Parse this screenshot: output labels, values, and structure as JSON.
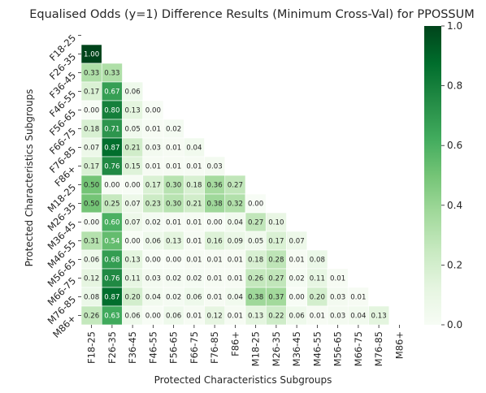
{
  "chart_data": {
    "type": "heatmap",
    "title": "Equalised Odds (y=1)  Difference Results (Minimum Cross-Val) for PPOSSUM",
    "xlabel": "Protected Characteristics Subgroups",
    "ylabel": "Protected Characteristics Subgroups",
    "x_categories": [
      "F18-25",
      "F26-35",
      "F36-45",
      "F46-55",
      "F56-65",
      "F66-75",
      "F76-85",
      "F86+",
      "M18-25",
      "M26-35",
      "M36-45",
      "M46-55",
      "M56-65",
      "M66-75",
      "M76-85",
      "M86+"
    ],
    "y_categories": [
      "F18-25",
      "F26-35",
      "F36-45",
      "F46-55",
      "F56-65",
      "F66-75",
      "F76-85",
      "F86+",
      "M18-25",
      "M26-35",
      "M36-45",
      "M46-55",
      "M56-65",
      "M66-75",
      "M76-85",
      "M86+"
    ],
    "mask": "upper-triangle-including-diagonal",
    "values": [
      [],
      [
        "1.00"
      ],
      [
        "0.33",
        "0.33"
      ],
      [
        "0.17",
        "0.67",
        "0.06"
      ],
      [
        "0.00",
        "0.80",
        "0.13",
        "0.00"
      ],
      [
        "0.18",
        "0.71",
        "0.05",
        "0.01",
        "0.02"
      ],
      [
        "0.07",
        "0.87",
        "0.21",
        "0.03",
        "0.01",
        "0.04"
      ],
      [
        "0.17",
        "0.76",
        "0.15",
        "0.01",
        "0.01",
        "0.01",
        "0.03"
      ],
      [
        "0.50",
        "0.00",
        "0.00",
        "0.17",
        "0.30",
        "0.18",
        "0.36",
        "0.27"
      ],
      [
        "0.50",
        "0.25",
        "0.07",
        "0.23",
        "0.30",
        "0.21",
        "0.38",
        "0.32",
        "0.00"
      ],
      [
        "0.00",
        "0.60",
        "0.07",
        "0.02",
        "0.01",
        "0.01",
        "0.00",
        "0.04",
        "0.27",
        "0.10"
      ],
      [
        "0.31",
        "0.54",
        "0.00",
        "0.06",
        "0.13",
        "0.01",
        "0.16",
        "0.09",
        "0.05",
        "0.17",
        "0.07"
      ],
      [
        "0.06",
        "0.68",
        "0.13",
        "0.00",
        "0.00",
        "0.01",
        "0.01",
        "0.01",
        "0.18",
        "0.28",
        "0.01",
        "0.08"
      ],
      [
        "0.12",
        "0.76",
        "0.11",
        "0.03",
        "0.02",
        "0.02",
        "0.01",
        "0.01",
        "0.26",
        "0.27",
        "0.02",
        "0.11",
        "0.01"
      ],
      [
        "0.08",
        "0.87",
        "0.20",
        "0.04",
        "0.02",
        "0.06",
        "0.01",
        "0.04",
        "0.38",
        "0.37",
        "0.00",
        "0.20",
        "0.03",
        "0.01"
      ],
      [
        "0.26",
        "0.63",
        "0.06",
        "0.00",
        "0.06",
        "0.01",
        "0.12",
        "0.01",
        "0.13",
        "0.22",
        "0.06",
        "0.01",
        "0.03",
        "0.04",
        "0.13"
      ]
    ],
    "colormap": "Greens",
    "colorbar": {
      "vmin": 0.0,
      "vmax": 1.0,
      "ticks": [
        "0.0",
        "0.2",
        "0.4",
        "0.6",
        "0.8",
        "1.0"
      ]
    }
  }
}
